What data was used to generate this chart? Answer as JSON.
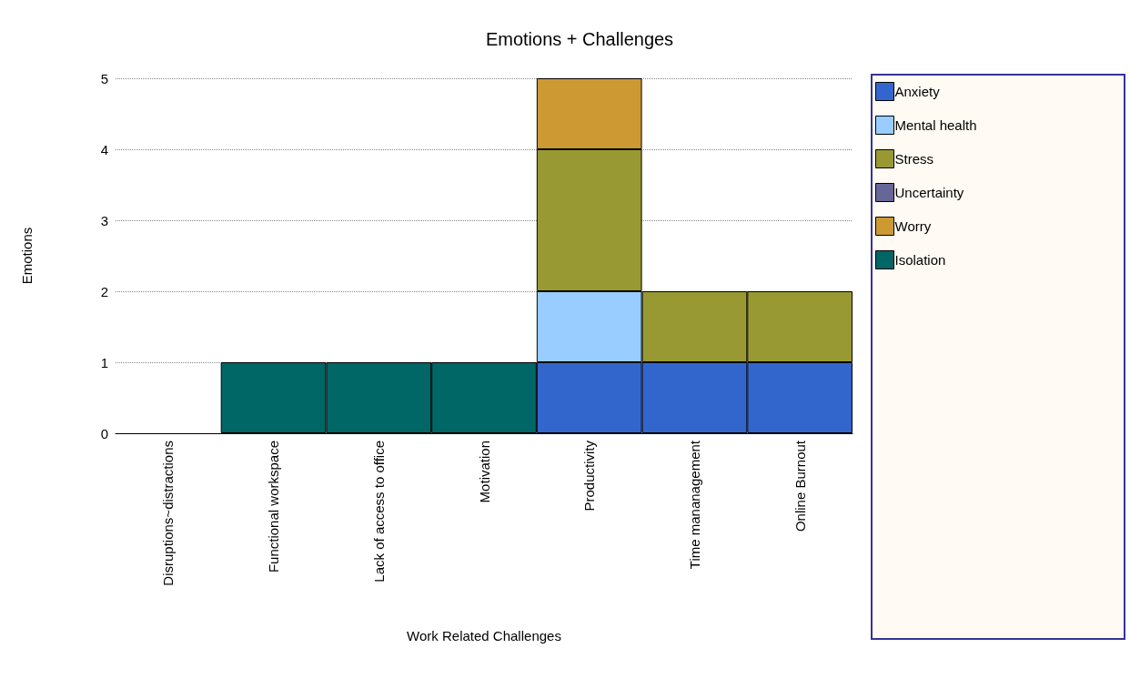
{
  "chart_data": {
    "type": "bar",
    "title": "Emotions + Challenges",
    "xlabel": "Work Related Challenges",
    "ylabel": "Emotions",
    "categories": [
      "Disruptions~distractions",
      "Functional workspace",
      "Lack of access to office",
      "Motivation",
      "Productivity",
      "Time mananagement",
      "Online Burnout"
    ],
    "series": [
      {
        "name": "Anxiety",
        "color": "#3366cc",
        "values": [
          null,
          null,
          null,
          null,
          1,
          1,
          1
        ]
      },
      {
        "name": "Mental health",
        "color": "#99ccff",
        "values": [
          null,
          null,
          null,
          null,
          1,
          null,
          null
        ]
      },
      {
        "name": "Stress",
        "color": "#999933",
        "values": [
          null,
          null,
          null,
          null,
          2,
          1,
          1
        ]
      },
      {
        "name": "Uncertainty",
        "color": "#666699",
        "values": [
          null,
          null,
          null,
          null,
          null,
          null,
          null
        ]
      },
      {
        "name": "Worry",
        "color": "#cc9933",
        "values": [
          null,
          null,
          null,
          null,
          1,
          null,
          null
        ]
      },
      {
        "name": "Isolation",
        "color": "#006666",
        "values": [
          null,
          1,
          1,
          1,
          null,
          null,
          null
        ]
      }
    ],
    "stacked": true,
    "ylim": [
      0,
      5
    ],
    "yticks": [
      0,
      1,
      2,
      3,
      4,
      5
    ],
    "grid": "y",
    "legend": "right"
  }
}
